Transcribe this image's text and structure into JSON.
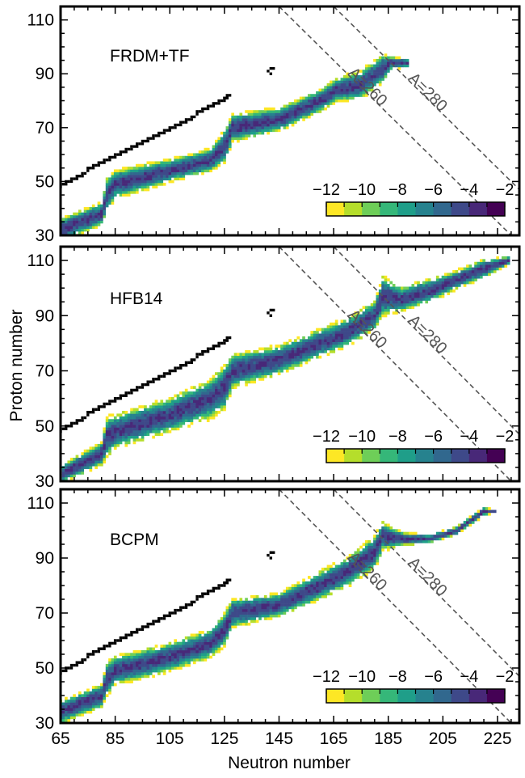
{
  "figure": {
    "ylabel": "Proton number",
    "xlabel": "Neutron number",
    "colorbar_labels": [
      "−12",
      "−10",
      "−8",
      "−6",
      "−4",
      "−2"
    ],
    "colormap": [
      "#fde725",
      "#b5de2b",
      "#6ece58",
      "#35b779",
      "#1f9e89",
      "#26828e",
      "#31688e",
      "#3e4989",
      "#482878",
      "#440154"
    ],
    "stable_color": "#000000",
    "line_color": "#555555"
  },
  "chart_data": [
    {
      "type": "heatmap",
      "title": "FRDM+TF",
      "xlim": [
        65,
        233
      ],
      "ylim": [
        30,
        115
      ],
      "xticks": [
        65,
        85,
        105,
        125,
        145,
        165,
        185,
        205,
        225
      ],
      "yticks": [
        30,
        50,
        70,
        90,
        110
      ],
      "xtick_labels_visible": false,
      "colorbar_range": [
        -12,
        -2
      ],
      "reference_lines": [
        {
          "label": "A=260",
          "A": 260
        },
        {
          "label": "A=280",
          "A": 280
        }
      ],
      "abundance_band": {
        "path": [
          [
            65,
            32
          ],
          [
            80,
            38
          ],
          [
            82,
            45
          ],
          [
            85,
            49
          ],
          [
            105,
            54
          ],
          [
            120,
            58
          ],
          [
            125,
            63
          ],
          [
            128,
            70
          ],
          [
            145,
            73
          ],
          [
            160,
            80
          ],
          [
            166,
            84
          ],
          [
            175,
            86
          ],
          [
            183,
            92
          ],
          [
            186,
            94
          ],
          [
            192,
            94
          ]
        ],
        "halfwidth": [
          4,
          4,
          6,
          5,
          4,
          4,
          6,
          5,
          4,
          4,
          4,
          5,
          5,
          2,
          1
        ],
        "noise": 0.25,
        "range": [
          65,
          192
        ],
        "minlog": -12.5,
        "seed": 11
      }
    },
    {
      "type": "heatmap",
      "title": "HFB14",
      "xlim": [
        65,
        233
      ],
      "ylim": [
        30,
        115
      ],
      "xticks": [
        65,
        85,
        105,
        125,
        145,
        165,
        185,
        205,
        225
      ],
      "yticks": [
        30,
        50,
        70,
        90,
        110
      ],
      "xtick_labels_visible": false,
      "colorbar_range": [
        -12,
        -2
      ],
      "reference_lines": [
        {
          "label": "A=260",
          "A": 260
        },
        {
          "label": "A=280",
          "A": 280
        }
      ],
      "abundance_band": {
        "path": [
          [
            66,
            33
          ],
          [
            80,
            40
          ],
          [
            82,
            46
          ],
          [
            85,
            48
          ],
          [
            105,
            54
          ],
          [
            120,
            60
          ],
          [
            125,
            64
          ],
          [
            128,
            70
          ],
          [
            145,
            74
          ],
          [
            160,
            80
          ],
          [
            170,
            84
          ],
          [
            180,
            90
          ],
          [
            183,
            97
          ],
          [
            190,
            96
          ],
          [
            200,
            99
          ],
          [
            210,
            103
          ],
          [
            220,
            107
          ],
          [
            229,
            110
          ]
        ],
        "halfwidth": [
          3,
          4,
          7,
          6,
          6,
          7,
          8,
          6,
          5,
          5,
          5,
          5,
          7,
          4,
          4,
          3,
          3,
          1
        ],
        "noise": 0.3,
        "range": [
          66,
          229
        ],
        "minlog": -12.5,
        "seed": 23
      }
    },
    {
      "type": "heatmap",
      "title": "BCPM",
      "xlim": [
        65,
        233
      ],
      "ylim": [
        30,
        115
      ],
      "xticks": [
        65,
        85,
        105,
        125,
        145,
        165,
        185,
        205,
        225
      ],
      "yticks": [
        30,
        50,
        70,
        90,
        110
      ],
      "xtick_labels_visible": true,
      "colorbar_range": [
        -12,
        -2
      ],
      "reference_lines": [
        {
          "label": "A=260",
          "A": 260
        },
        {
          "label": "A=280",
          "A": 280
        }
      ],
      "abundance_band": {
        "path": [
          [
            65,
            34
          ],
          [
            80,
            40
          ],
          [
            82,
            46
          ],
          [
            85,
            49
          ],
          [
            105,
            54
          ],
          [
            120,
            59
          ],
          [
            125,
            64
          ],
          [
            128,
            70
          ],
          [
            145,
            73
          ],
          [
            160,
            80
          ],
          [
            170,
            85
          ],
          [
            180,
            92
          ],
          [
            183,
            98
          ],
          [
            190,
            97
          ],
          [
            200,
            97
          ],
          [
            210,
            100
          ],
          [
            220,
            107
          ],
          [
            224,
            107
          ]
        ],
        "halfwidth": [
          4,
          4,
          6,
          5,
          5,
          5,
          6,
          5,
          4,
          5,
          5,
          6,
          5,
          2,
          1,
          1,
          1,
          0
        ],
        "noise": 0.25,
        "range": [
          65,
          224
        ],
        "minlog": -12.5,
        "seed": 37
      }
    }
  ],
  "stable_nuclei": {
    "staircase": [
      [
        65,
        49
      ],
      [
        67,
        50
      ],
      [
        69,
        51
      ],
      [
        71,
        52
      ],
      [
        73,
        53
      ],
      [
        75,
        55
      ],
      [
        77,
        56
      ],
      [
        79,
        57
      ],
      [
        81,
        58
      ],
      [
        83,
        59
      ],
      [
        85,
        60
      ],
      [
        87,
        61
      ],
      [
        89,
        62
      ],
      [
        91,
        63
      ],
      [
        93,
        64
      ],
      [
        95,
        65
      ],
      [
        97,
        66
      ],
      [
        99,
        67
      ],
      [
        101,
        68
      ],
      [
        103,
        69
      ],
      [
        105,
        70
      ],
      [
        107,
        71
      ],
      [
        109,
        72
      ],
      [
        111,
        73
      ],
      [
        113,
        74
      ],
      [
        115,
        76
      ],
      [
        117,
        77
      ],
      [
        119,
        78
      ],
      [
        121,
        79
      ],
      [
        123,
        80
      ],
      [
        125,
        81
      ],
      [
        126,
        82
      ]
    ],
    "isolated": [
      [
        141,
        91
      ],
      [
        142,
        92
      ],
      [
        143,
        92
      ],
      [
        142,
        90
      ]
    ]
  }
}
